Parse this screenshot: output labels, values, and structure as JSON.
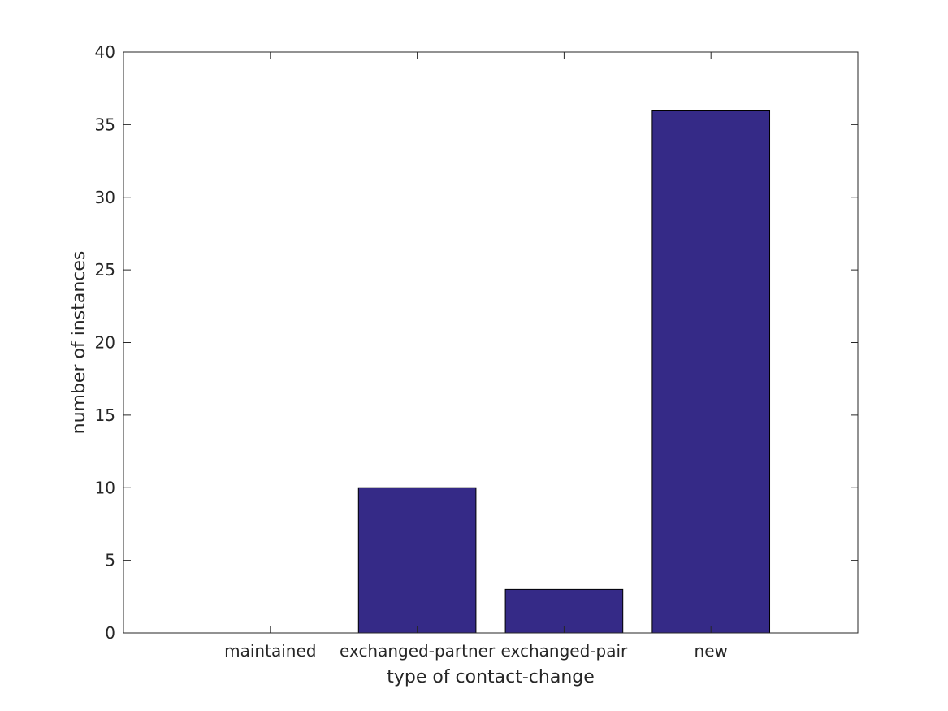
{
  "chart_data": {
    "type": "bar",
    "categories": [
      "maintained",
      "exchanged-partner",
      "exchanged-pair",
      "new"
    ],
    "values": [
      0,
      10,
      3,
      36
    ],
    "xlabel": "type of contact-change",
    "ylabel": "number of instances",
    "ylim": [
      0,
      40
    ],
    "yticks": [
      0,
      5,
      10,
      15,
      20,
      25,
      30,
      35,
      40
    ],
    "ytick_labels": [
      "0",
      "5",
      "10",
      "15",
      "20",
      "25",
      "30",
      "35",
      "40"
    ],
    "grid": false,
    "bar_color": "#352a87",
    "bar_edge_color": "#000000"
  }
}
